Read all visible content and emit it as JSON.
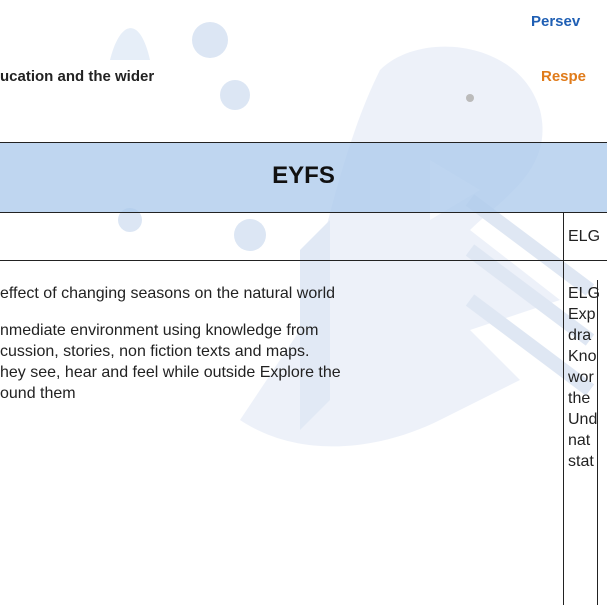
{
  "header": {
    "values_top": "Persev",
    "heading": "ucation and the wider",
    "values_second": "Respe"
  },
  "table": {
    "title": "EYFS",
    "rows": [
      {
        "left": [],
        "right": [
          "ELG"
        ]
      },
      {
        "left": [
          "effect of changing seasons on the natural world",
          "nmediate environment using knowledge from",
          "cussion, stories, non fiction texts and maps.",
          "hey see, hear and feel while outside Explore the",
          "ound them"
        ],
        "right": [
          "ELG",
          "Exp",
          "dra",
          "Kno",
          "wor",
          "the",
          "Und",
          "nat",
          "stat"
        ]
      }
    ]
  }
}
